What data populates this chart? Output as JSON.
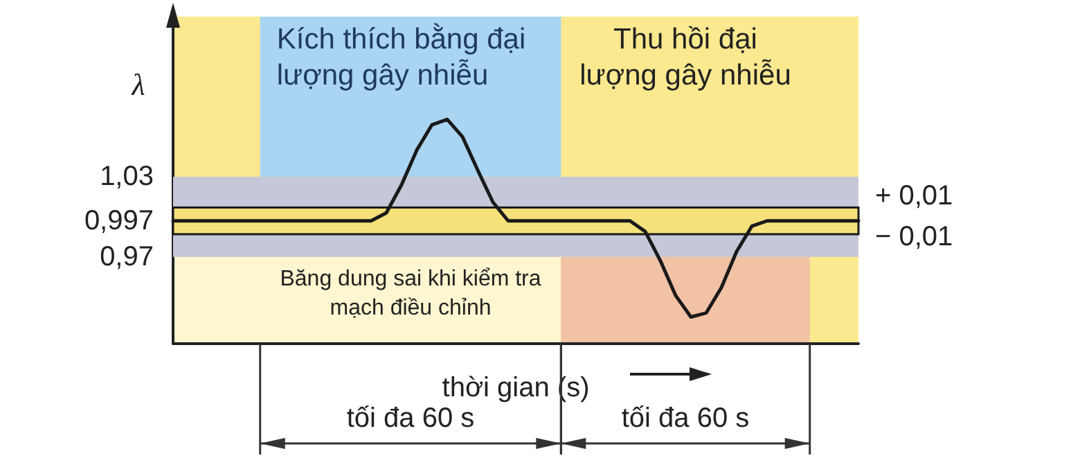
{
  "chart_data": {
    "type": "line",
    "ylabel": "λ",
    "xlabel": "thời gian (s)",
    "categories": [
      null,
      null,
      null,
      null,
      null,
      null,
      null,
      null,
      null,
      null,
      null,
      null,
      null,
      null,
      null,
      null,
      null,
      null,
      null,
      null,
      null,
      null,
      null,
      null,
      null,
      null,
      null,
      null,
      null,
      null,
      null,
      null,
      null,
      null,
      null,
      null,
      null,
      null,
      null,
      null,
      null,
      null,
      null,
      null,
      null,
      null
    ],
    "series": [
      {
        "color": "#1a1a1a",
        "values": [
          0.997,
          0.997,
          0.997,
          0.997,
          0.997,
          0.997,
          0.997,
          0.997,
          0.997,
          0.997,
          0.997,
          0.997,
          0.997,
          0.997,
          1.003,
          1.024,
          1.05,
          1.069,
          1.073,
          1.06,
          1.035,
          1.011,
          0.997,
          0.997,
          0.997,
          0.997,
          0.997,
          0.997,
          0.997,
          0.997,
          0.997,
          0.989,
          0.967,
          0.941,
          0.925,
          0.928,
          0.947,
          0.974,
          0.993,
          0.997,
          0.997,
          0.997,
          0.997,
          0.997,
          0.997,
          0.997
        ]
      }
    ],
    "ylim": [
      0.905,
      1.15
    ],
    "yticks": [
      {
        "value": 1.03,
        "label": "1,03"
      },
      {
        "value": 0.997,
        "label": "0,997"
      },
      {
        "value": 0.97,
        "label": "0,97"
      }
    ],
    "tick_labels": "y",
    "marker": "none",
    "line_style": "solid",
    "grid": false,
    "bands": [
      {
        "axis": "y",
        "from": 1.007,
        "to": 1.03,
        "color": "#c4c8d8"
      },
      {
        "axis": "y",
        "from": 0.97,
        "to": 0.987,
        "color": "#c4c8d8"
      },
      {
        "axis": "y",
        "from": 0.987,
        "to": 1.007,
        "color": "#f6e07a"
      }
    ],
    "annotations": [
      "Băng dung sai khi kiểm tra mạch điều chỉnh",
      "tối đa 60 s",
      "tối đa 60 s",
      "Kích thích bằng đại lượng gây nhiễu",
      "Thu hồi đại lượng gây nhiễu",
      "+ 0,01",
      "− 0,01"
    ]
  }
}
